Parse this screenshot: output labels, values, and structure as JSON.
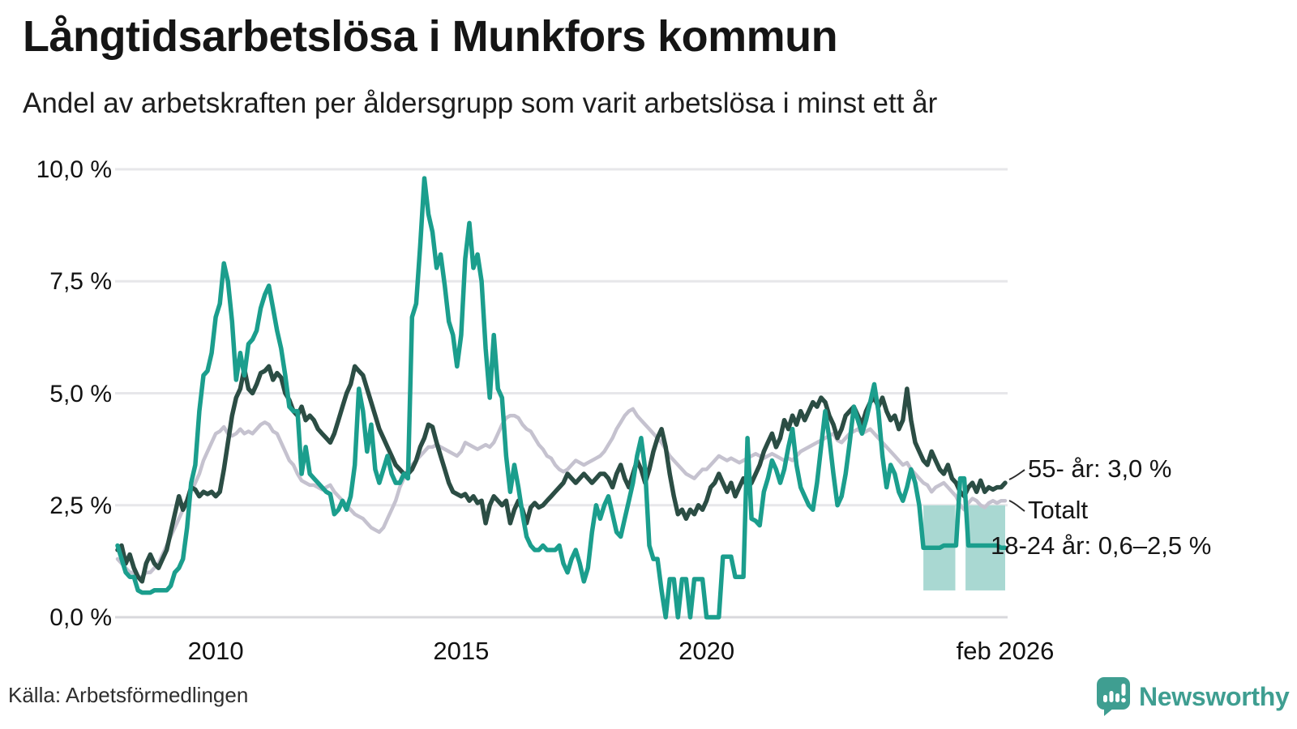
{
  "header": {
    "title": "Långtidsarbetslösa i Munkfors kommun",
    "subtitle": "Andel av arbetskraften per åldersgrupp som varit arbetslösa i minst ett år"
  },
  "chart_data": {
    "type": "line",
    "title": "Långtidsarbetslösa i Munkfors kommun",
    "subtitle": "Andel av arbetskraften per åldersgrupp som varit arbetslösa i minst ett år",
    "x_start_month": "2008-01",
    "x_end_month": "2026-02",
    "ylim": [
      0,
      10
    ],
    "grid": "horizontal",
    "y_ticks": [
      0,
      2.5,
      5,
      7.5,
      10
    ],
    "y_tick_labels": [
      "0,0 %",
      "2,5 %",
      "5,0 %",
      "7,5 %",
      "10,0 %"
    ],
    "x_tick_month_index": [
      24,
      84,
      144,
      217
    ],
    "x_tick_labels": [
      "2010",
      "2015",
      "2020",
      "feb 2026"
    ],
    "series": [
      {
        "id": "total",
        "label": "Totalt",
        "color": "#c5c2cf",
        "values": [
          1.3,
          1.2,
          1.1,
          1.0,
          1.0,
          0.9,
          0.9,
          1.0,
          1.0,
          1.1,
          1.2,
          1.4,
          1.6,
          1.8,
          2.0,
          2.2,
          2.4,
          2.6,
          2.8,
          3.0,
          3.2,
          3.5,
          3.7,
          3.9,
          4.1,
          4.15,
          4.25,
          4.1,
          4.05,
          4.1,
          4.2,
          4.1,
          4.15,
          4.1,
          4.2,
          4.3,
          4.35,
          4.3,
          4.15,
          4.1,
          3.9,
          3.7,
          3.5,
          3.4,
          3.2,
          3.05,
          3.0,
          2.95,
          2.95,
          2.9,
          2.85,
          2.9,
          2.95,
          2.8,
          2.7,
          2.6,
          2.5,
          2.4,
          2.3,
          2.25,
          2.2,
          2.1,
          2.0,
          1.95,
          1.9,
          2.0,
          2.2,
          2.4,
          2.6,
          2.9,
          3.1,
          3.3,
          3.4,
          3.5,
          3.6,
          3.7,
          3.8,
          3.8,
          3.85,
          3.8,
          3.75,
          3.7,
          3.65,
          3.6,
          3.7,
          3.9,
          3.85,
          3.8,
          3.75,
          3.8,
          3.85,
          3.8,
          3.9,
          4.1,
          4.3,
          4.45,
          4.5,
          4.5,
          4.45,
          4.3,
          4.2,
          4.15,
          4.0,
          3.85,
          3.75,
          3.6,
          3.55,
          3.4,
          3.3,
          3.25,
          3.3,
          3.4,
          3.5,
          3.45,
          3.4,
          3.45,
          3.5,
          3.55,
          3.6,
          3.7,
          3.85,
          4.0,
          4.2,
          4.35,
          4.5,
          4.6,
          4.65,
          4.5,
          4.4,
          4.3,
          4.2,
          4.1,
          4.0,
          3.9,
          3.75,
          3.6,
          3.5,
          3.4,
          3.3,
          3.2,
          3.15,
          3.1,
          3.2,
          3.3,
          3.3,
          3.4,
          3.5,
          3.6,
          3.55,
          3.5,
          3.55,
          3.5,
          3.45,
          3.5,
          3.55,
          3.6,
          3.65,
          3.6,
          3.55,
          3.6,
          3.65,
          3.6,
          3.55,
          3.5,
          3.55,
          3.5,
          3.6,
          3.7,
          3.75,
          3.8,
          3.85,
          3.9,
          3.95,
          4.0,
          4.05,
          4.1,
          3.95,
          3.9,
          4.0,
          4.1,
          4.15,
          4.2,
          4.1,
          4.15,
          4.2,
          4.1,
          4.0,
          3.9,
          3.8,
          3.7,
          3.6,
          3.5,
          3.4,
          3.45,
          3.3,
          3.2,
          3.1,
          3.0,
          2.95,
          2.8,
          2.9,
          2.95,
          3.0,
          2.9,
          2.8,
          2.7,
          2.5,
          2.4,
          2.55,
          2.65,
          2.6,
          2.5,
          2.45,
          2.55,
          2.6,
          2.55,
          2.6,
          2.6
        ]
      },
      {
        "id": "age-55-plus",
        "label": "55- år",
        "color": "#2b4d44",
        "values": [
          1.5,
          1.6,
          1.2,
          1.4,
          1.1,
          0.9,
          0.8,
          1.2,
          1.4,
          1.2,
          1.1,
          1.3,
          1.5,
          1.9,
          2.3,
          2.7,
          2.4,
          2.6,
          2.9,
          2.85,
          2.7,
          2.8,
          2.75,
          2.8,
          2.7,
          2.8,
          3.3,
          3.9,
          4.5,
          4.9,
          5.1,
          5.55,
          5.1,
          5.0,
          5.2,
          5.45,
          5.5,
          5.6,
          5.3,
          5.45,
          5.35,
          5.0,
          4.85,
          4.6,
          4.5,
          4.7,
          4.4,
          4.5,
          4.4,
          4.2,
          4.1,
          4.0,
          3.9,
          4.1,
          4.4,
          4.7,
          5.0,
          5.2,
          5.6,
          5.5,
          5.4,
          5.1,
          4.8,
          4.5,
          4.2,
          4.0,
          3.8,
          3.6,
          3.4,
          3.3,
          3.2,
          3.2,
          3.3,
          3.5,
          3.8,
          4.0,
          4.3,
          4.25,
          3.9,
          3.6,
          3.3,
          3.0,
          2.8,
          2.75,
          2.7,
          2.75,
          2.6,
          2.7,
          2.55,
          2.6,
          2.1,
          2.5,
          2.7,
          2.6,
          2.5,
          2.6,
          2.1,
          2.4,
          2.6,
          2.4,
          2.1,
          2.45,
          2.55,
          2.45,
          2.5,
          2.6,
          2.7,
          2.8,
          2.9,
          3.0,
          3.2,
          3.1,
          3.0,
          3.1,
          3.2,
          3.1,
          3.0,
          3.1,
          3.2,
          3.2,
          3.1,
          2.9,
          3.2,
          3.4,
          3.1,
          2.9,
          3.2,
          3.5,
          3.3,
          3.0,
          3.3,
          3.7,
          4.0,
          4.2,
          3.8,
          3.2,
          2.7,
          2.3,
          2.4,
          2.2,
          2.4,
          2.3,
          2.5,
          2.4,
          2.6,
          2.9,
          3.0,
          3.2,
          3.0,
          2.8,
          3.0,
          2.7,
          2.9,
          3.1,
          2.9,
          3.0,
          3.2,
          3.4,
          3.7,
          3.9,
          4.1,
          3.8,
          4.0,
          4.4,
          4.2,
          4.5,
          4.3,
          4.6,
          4.4,
          4.6,
          4.8,
          4.7,
          4.9,
          4.8,
          4.5,
          4.3,
          4.0,
          4.2,
          4.5,
          4.6,
          4.7,
          4.5,
          4.3,
          4.6,
          4.8,
          4.9,
          4.7,
          4.9,
          4.6,
          4.4,
          4.5,
          4.2,
          4.4,
          5.1,
          4.4,
          3.9,
          3.7,
          3.5,
          3.4,
          3.7,
          3.5,
          3.3,
          3.2,
          3.4,
          3.1,
          3.0,
          2.8,
          2.7,
          2.9,
          3.0,
          2.8,
          3.05,
          2.8,
          2.9,
          2.85,
          2.9,
          2.9,
          3.0
        ]
      },
      {
        "id": "age-18-24",
        "label": "18-24 år",
        "color": "#1b9e8d",
        "values": [
          1.6,
          1.3,
          1.0,
          0.9,
          0.9,
          0.6,
          0.55,
          0.55,
          0.55,
          0.6,
          0.6,
          0.6,
          0.6,
          0.7,
          1.0,
          1.1,
          1.3,
          2.0,
          3.0,
          3.4,
          4.6,
          5.4,
          5.5,
          5.9,
          6.7,
          7.0,
          7.9,
          7.5,
          6.6,
          5.3,
          5.9,
          5.4,
          6.1,
          6.2,
          6.4,
          6.9,
          7.2,
          7.4,
          6.9,
          6.4,
          6.0,
          5.4,
          4.7,
          4.6,
          4.6,
          3.2,
          3.8,
          3.2,
          3.1,
          3.0,
          2.9,
          2.8,
          2.75,
          2.3,
          2.4,
          2.6,
          2.4,
          2.7,
          3.4,
          5.1,
          4.6,
          3.7,
          4.3,
          3.3,
          3.0,
          3.3,
          3.6,
          3.2,
          3.0,
          3.0,
          3.2,
          3.1,
          6.7,
          7.0,
          8.3,
          9.8,
          9.0,
          8.6,
          7.8,
          8.1,
          7.4,
          6.6,
          6.3,
          5.6,
          6.3,
          8.0,
          8.8,
          7.8,
          8.1,
          7.5,
          6.0,
          4.9,
          6.3,
          5.1,
          4.9,
          3.6,
          2.8,
          3.4,
          2.9,
          2.3,
          1.8,
          1.6,
          1.5,
          1.5,
          1.6,
          1.5,
          1.5,
          1.5,
          1.6,
          1.2,
          1.0,
          1.3,
          1.5,
          1.2,
          0.8,
          1.1,
          1.9,
          2.5,
          2.2,
          2.5,
          2.7,
          2.3,
          1.9,
          1.8,
          2.2,
          2.6,
          3.0,
          3.6,
          4.0,
          3.3,
          1.6,
          1.3,
          1.3,
          0.6,
          0.0,
          0.85,
          0.85,
          0.0,
          0.85,
          0.85,
          0.0,
          0.85,
          0.85,
          0.85,
          0.0,
          0.0,
          0.0,
          0.0,
          1.35,
          1.35,
          1.35,
          0.9,
          0.9,
          0.9,
          4.0,
          2.2,
          2.15,
          2.05,
          2.8,
          3.1,
          3.5,
          3.3,
          3.0,
          3.3,
          3.8,
          4.2,
          3.4,
          2.9,
          2.7,
          2.5,
          2.4,
          3.0,
          3.8,
          4.6,
          4.0,
          3.2,
          2.5,
          2.7,
          3.2,
          3.9,
          4.7,
          4.4,
          4.1,
          4.4,
          4.8,
          5.2,
          4.6,
          3.6,
          2.9,
          3.4,
          3.2,
          2.8,
          2.6,
          2.9,
          3.3,
          3.0,
          2.5,
          1.55,
          1.55,
          1.55,
          1.55,
          1.55,
          1.6,
          1.6,
          1.6,
          1.6,
          3.1,
          3.1,
          1.6,
          1.6,
          1.6,
          1.6,
          1.6,
          1.6,
          1.6,
          1.6,
          1.55,
          1.55
        ]
      }
    ],
    "uncertainty_band": {
      "applies_to": "18-24 år",
      "low": 0.6,
      "high": 2.5,
      "color": "#a9d8d2",
      "segments_month_index": [
        [
          197,
          204.8
        ],
        [
          207.3,
          217
        ]
      ]
    },
    "end_labels": [
      {
        "text": "55- år: 3,0 %"
      },
      {
        "text": "Totalt"
      },
      {
        "text": "18-24 år: 0,6–2,5 %"
      }
    ],
    "colors": {
      "grid": "#e7e7ea",
      "zero_line": "#d8d8dc"
    },
    "legend_position": "end-of-line-labels"
  },
  "footer": {
    "source": "Källa: Arbetsförmedlingen",
    "brand": "Newsworthy"
  }
}
